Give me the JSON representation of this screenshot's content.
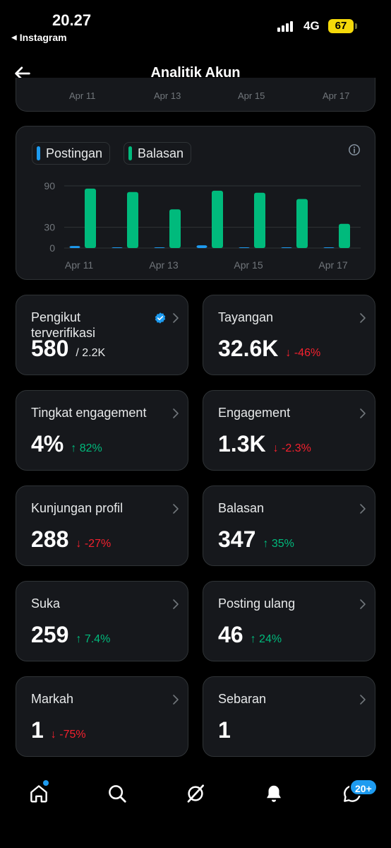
{
  "status_bar": {
    "time": "20.27",
    "back_app": "Instagram",
    "network": "4G",
    "battery": "67"
  },
  "header": {
    "title": "Analitik Akun"
  },
  "top_chart_fragment": {
    "x_labels": [
      "Apr 11",
      "Apr 13",
      "Apr 15",
      "Apr 17"
    ]
  },
  "chart_data": {
    "type": "bar",
    "categories": [
      "Apr 11",
      "Apr 12",
      "Apr 13",
      "Apr 14",
      "Apr 15",
      "Apr 16",
      "Apr 17"
    ],
    "x_tick_labels": [
      "Apr 11",
      "Apr 13",
      "Apr 15",
      "Apr 17"
    ],
    "y_ticks": [
      "0",
      "30",
      "90"
    ],
    "ylim": [
      0,
      100
    ],
    "grid": true,
    "legend_position": "top-left",
    "series": [
      {
        "name": "Postingan",
        "color": "#1d9bf0",
        "values": [
          3,
          1,
          1,
          4,
          1,
          1,
          1
        ]
      },
      {
        "name": "Balasan",
        "color": "#00ba7c",
        "values": [
          86,
          81,
          56,
          83,
          80,
          71,
          35
        ]
      }
    ]
  },
  "stats": [
    {
      "label": "Pengikut terverifikasi",
      "value": "580",
      "sub": "/ 2.2K",
      "change": "",
      "dir": "",
      "verified": true
    },
    {
      "label": "Tayangan",
      "value": "32.6K",
      "sub": "",
      "change": "↓ -46%",
      "dir": "down"
    },
    {
      "label": "Tingkat engagement",
      "value": "4%",
      "sub": "",
      "change": "↑ 82%",
      "dir": "up"
    },
    {
      "label": "Engagement",
      "value": "1.3K",
      "sub": "",
      "change": "↓ -2.3%",
      "dir": "down"
    },
    {
      "label": "Kunjungan profil",
      "value": "288",
      "sub": "",
      "change": "↓ -27%",
      "dir": "down"
    },
    {
      "label": "Balasan",
      "value": "347",
      "sub": "",
      "change": "↑ 35%",
      "dir": "up"
    },
    {
      "label": "Suka",
      "value": "259",
      "sub": "",
      "change": "↑ 7.4%",
      "dir": "up"
    },
    {
      "label": "Posting ulang",
      "value": "46",
      "sub": "",
      "change": "↑ 24%",
      "dir": "up"
    },
    {
      "label": "Markah",
      "value": "1",
      "sub": "",
      "change": "↓ -75%",
      "dir": "down"
    },
    {
      "label": "Sebaran",
      "value": "1",
      "sub": "",
      "change": "",
      "dir": ""
    }
  ],
  "bottom_nav": {
    "items": [
      "home-icon",
      "search-icon",
      "grok-icon",
      "notifications-icon",
      "messages-icon"
    ],
    "messages_badge": "20+"
  },
  "colors": {
    "background": "#000000",
    "card": "#16181c",
    "up": "#00ba7c",
    "down": "#f4212e",
    "accent": "#1d9bf0"
  }
}
